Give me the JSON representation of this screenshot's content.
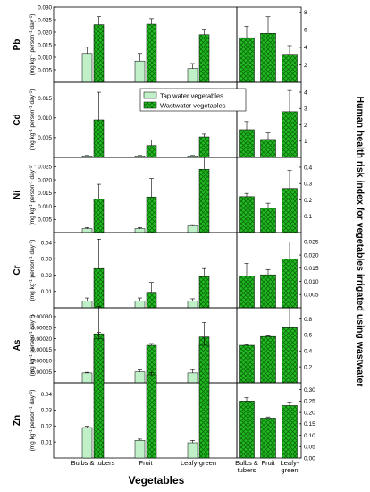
{
  "chart_data": {
    "type": "bar",
    "categories": [
      "Bulbs & tubers",
      "Fruit",
      "Leafy-green"
    ],
    "x_category_labels": [
      [
        "Bulbs & tubers"
      ],
      [
        "Fruit"
      ],
      [
        "Leafy-green"
      ]
    ],
    "right_category_labels": [
      [
        "Bulbs &",
        "tubers"
      ],
      [
        "Fruit"
      ],
      [
        "Leafy-",
        "green"
      ]
    ],
    "xlabel": "Vegetables",
    "right_ylabel": "Human health risk index  for vegetables irrigated using wastwater",
    "legend": {
      "placement": "top-center",
      "items": [
        {
          "label": "Tap water vegetables",
          "color": "#bff0c8",
          "pattern": "none"
        },
        {
          "label": "Wastwater vegetables",
          "color": "#22bb22",
          "pattern": "crosshatch"
        }
      ]
    },
    "colors": {
      "tap": "#bff0c8",
      "waste": "#22bb22",
      "hri": "#22bb22"
    },
    "ylabel_unit_line1": "(mg kg",
    "ylabel_unit_sup1": "-1",
    "ylabel_unit_line2": " person",
    "ylabel_unit_sup2": "-1",
    "ylabel_unit_line3": " day",
    "ylabel_unit_sup3": "-1",
    "ylabel_unit_close": ")",
    "panels": [
      {
        "metal": "Pb",
        "left_ylim": [
          0,
          0.03
        ],
        "left_ticks": [
          "0.005",
          "0.010",
          "0.015",
          "0.020",
          "0.025",
          "0.030"
        ],
        "left_tick_values": [
          0.005,
          0.01,
          0.015,
          0.02,
          0.025,
          0.03
        ],
        "tap": [
          0.0115,
          0.0085,
          0.0055
        ],
        "tap_err": [
          0.0025,
          0.003,
          0.002
        ],
        "waste": [
          0.023,
          0.0232,
          0.019
        ],
        "waste_err": [
          0.0032,
          0.0022,
          0.0022
        ],
        "right_ylim": [
          0,
          8.6
        ],
        "right_ticks": [
          "2",
          "4",
          "6",
          "8"
        ],
        "right_tick_values": [
          2,
          4,
          6,
          8
        ],
        "hri": [
          5.1,
          5.6,
          3.2
        ],
        "hri_err": [
          1.3,
          1.9,
          1.0
        ]
      },
      {
        "metal": "Cd",
        "left_ylim": [
          0,
          0.019
        ],
        "left_ticks": [
          "0.005",
          "0.010",
          "0.015"
        ],
        "left_tick_values": [
          0.005,
          0.01,
          0.015
        ],
        "tap": [
          0.0004,
          0.0004,
          0.0004
        ],
        "tap_err": [
          0.0001,
          0.0001,
          0.0001
        ],
        "waste": [
          0.0095,
          0.003,
          0.0052
        ],
        "waste_err": [
          0.007,
          0.0014,
          0.0007
        ],
        "right_ylim": [
          0,
          4.6
        ],
        "right_ticks": [
          "1",
          "2",
          "3",
          "4"
        ],
        "right_tick_values": [
          1,
          2,
          3,
          4
        ],
        "hri": [
          1.7,
          1.1,
          2.8
        ],
        "hri_err": [
          0.5,
          0.4,
          1.3
        ]
      },
      {
        "metal": "Ni",
        "left_ylim": [
          0,
          0.0285
        ],
        "left_ticks": [
          "0.005",
          "0.010",
          "0.015",
          "0.020",
          "0.025"
        ],
        "left_tick_values": [
          0.005,
          0.01,
          0.015,
          0.02,
          0.025
        ],
        "tap": [
          0.0015,
          0.0015,
          0.0025
        ],
        "tap_err": [
          0.0004,
          0.0004,
          0.0005
        ],
        "waste": [
          0.0128,
          0.0135,
          0.024
        ],
        "waste_err": [
          0.0055,
          0.007,
          0.0045
        ],
        "right_ylim": [
          0,
          0.46
        ],
        "right_ticks": [
          "0.1",
          "0.2",
          "0.3",
          "0.4"
        ],
        "right_tick_values": [
          0.1,
          0.2,
          0.3,
          0.4
        ],
        "hri": [
          0.22,
          0.15,
          0.27
        ],
        "hri_err": [
          0.02,
          0.03,
          0.11
        ]
      },
      {
        "metal": "Cr",
        "left_ylim": [
          0,
          0.046
        ],
        "left_ticks": [
          "0.01",
          "0.02",
          "0.03",
          "0.04"
        ],
        "left_tick_values": [
          0.01,
          0.02,
          0.03,
          0.04
        ],
        "tap": [
          0.004,
          0.004,
          0.004
        ],
        "tap_err": [
          0.002,
          0.002,
          0.0015
        ],
        "waste": [
          0.024,
          0.0095,
          0.019
        ],
        "waste_err": [
          0.018,
          0.006,
          0.005
        ],
        "right_ylim": [
          0,
          0.0285
        ],
        "right_ticks": [
          "0.005",
          "0.010",
          "0.015",
          "0.020",
          "0.025"
        ],
        "right_tick_values": [
          0.005,
          0.01,
          0.015,
          0.02,
          0.025
        ],
        "hri": [
          0.012,
          0.0125,
          0.0185
        ],
        "hri_err": [
          0.0048,
          0.002,
          0.0065
        ]
      },
      {
        "metal": "As",
        "left_ylim": [
          0,
          0.00034
        ],
        "left_ticks": [
          "0.00005",
          "0.00010",
          "0.00015",
          "0.00020",
          "0.00025",
          "0.00030"
        ],
        "left_tick_values": [
          5e-05,
          0.0001,
          0.00015,
          0.0002,
          0.00025,
          0.0003
        ],
        "tap": [
          4.5e-05,
          5e-05,
          4.5e-05
        ],
        "tap_err": [
          3e-06,
          8e-06,
          1.5e-05
        ],
        "waste": [
          0.000222,
          0.00017,
          0.000208
        ],
        "waste_err": [
          0.000125,
          8e-06,
          6.5e-05
        ],
        "right_ylim": [
          0,
          0.94
        ],
        "right_ticks": [
          "0.2",
          "0.4",
          "0.6",
          "0.8"
        ],
        "right_tick_values": [
          0.2,
          0.4,
          0.6,
          0.8
        ],
        "hri": [
          0.47,
          0.58,
          0.69
        ],
        "hri_err": [
          0.01,
          0.01,
          0.25
        ]
      },
      {
        "metal": "Zn",
        "left_ylim": [
          0,
          0.047
        ],
        "left_ticks": [
          "0.01",
          "0.02",
          "0.03",
          "0.04"
        ],
        "left_tick_values": [
          0.01,
          0.02,
          0.03,
          0.04
        ],
        "tap": [
          0.019,
          0.011,
          0.0095
        ],
        "tap_err": [
          0.0008,
          0.0008,
          0.0015
        ],
        "waste": [
          0.0745,
          0.052,
          0.0705
        ],
        "waste_err": [
          0.004,
          0.0015,
          0.0045
        ],
        "right_ylim": [
          0,
          0.33
        ],
        "right_ticks": [
          "0.00",
          "0.05",
          "0.10",
          "0.15",
          "0.20",
          "0.25",
          "0.30"
        ],
        "right_tick_values": [
          0.0,
          0.05,
          0.1,
          0.15,
          0.2,
          0.25,
          0.3
        ],
        "hri": [
          0.25,
          0.175,
          0.23
        ],
        "hri_err": [
          0.015,
          0.005,
          0.015
        ]
      }
    ]
  }
}
